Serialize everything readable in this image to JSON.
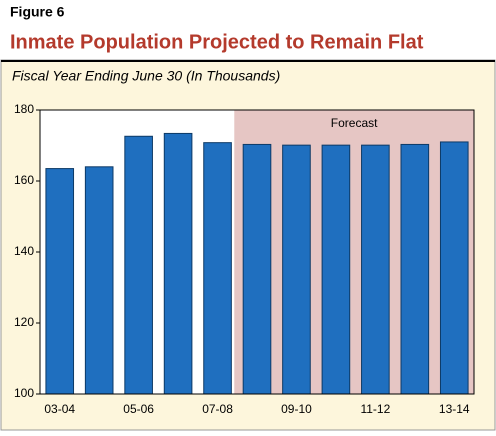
{
  "figure_label": "Figure 6",
  "chart_data": {
    "type": "bar",
    "title": "Inmate Population Projected to Remain Flat",
    "subtitle": "Fiscal Year Ending June 30 (In Thousands)",
    "categories": [
      "03-04",
      null,
      "05-06",
      null,
      "07-08",
      null,
      "09-10",
      null,
      "11-12",
      null,
      "13-14"
    ],
    "values": [
      163.5,
      164,
      172.6,
      173.4,
      170.8,
      170.3,
      170.1,
      170.1,
      170.1,
      170.3,
      171
    ],
    "color": "#1f6fbf",
    "ylim": [
      100,
      180
    ],
    "yticks": [
      100,
      120,
      140,
      160,
      180
    ],
    "forecast": {
      "label": "Forecast",
      "from_index": 5,
      "color": "#e6c6c4"
    }
  }
}
